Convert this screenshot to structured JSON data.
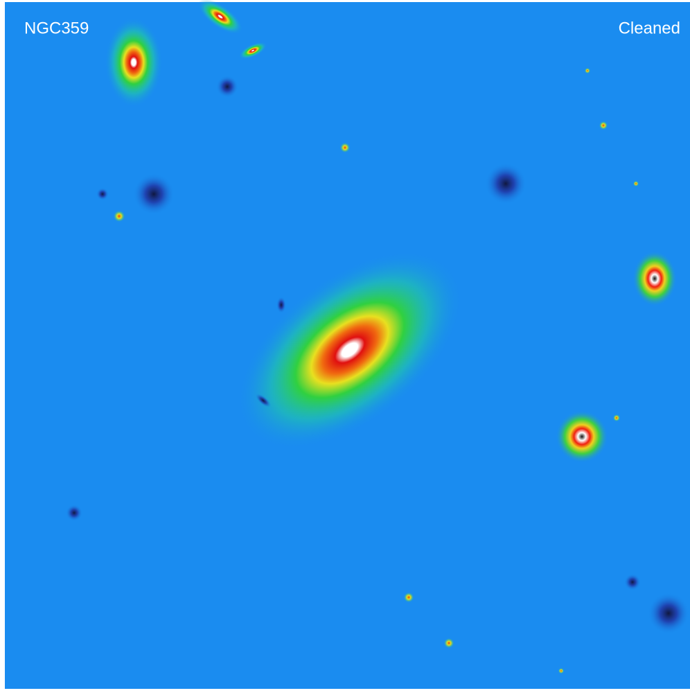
{
  "labels": {
    "object": "NGC359",
    "status": "Cleaned"
  }
}
